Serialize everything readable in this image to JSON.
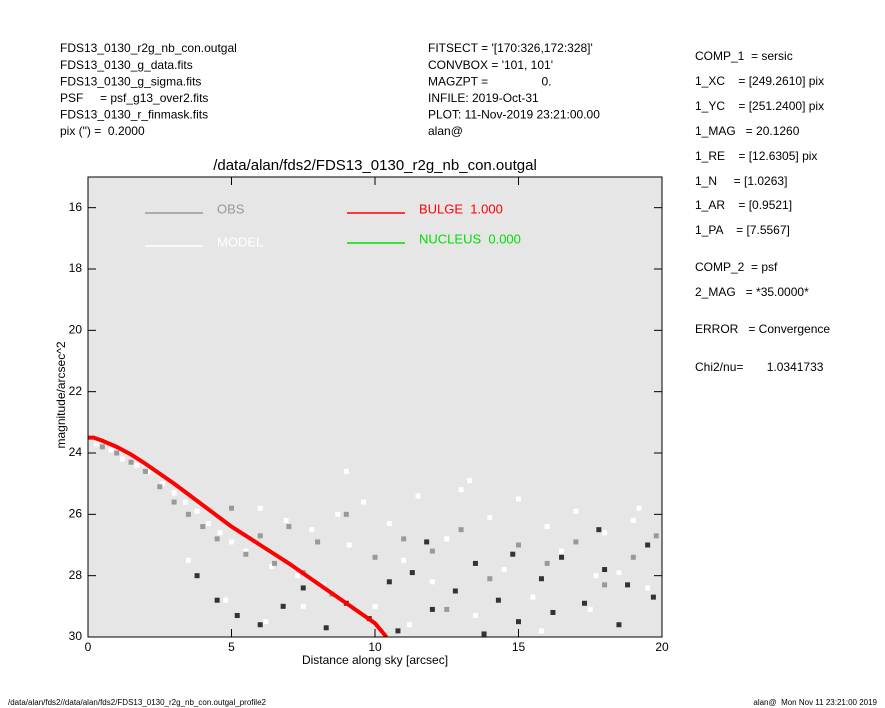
{
  "header": {
    "left": [
      "FDS13_0130_r2g_nb_con.outgal",
      "FDS13_0130_g_data.fits",
      "FDS13_0130_g_sigma.fits",
      "PSF     = psf_g13_over2.fits",
      "FDS13_0130_r_finmask.fits",
      "pix (\") =  0.2000"
    ],
    "middle": [
      "FITSECT = '[170:326,172:328]'",
      "CONVBOX = '101, 101'",
      "MAGZPT =                0.",
      "INFILE: 2019-Oct-31",
      "PLOT: 11-Nov-2019 23:21:00.00",
      "alan@"
    ],
    "right": [
      "COMP_1  = sersic",
      "1_XC    = [249.2610] pix",
      "1_YC    = [251.2400] pix",
      "1_MAG   = 20.1260",
      "1_RE    = [12.6305] pix",
      "1_N     = [1.0263]",
      "1_AR    = [0.9521]",
      "1_PA    = [7.5567]",
      "COMP_2  = psf",
      "2_MAG   = *35.0000*",
      "ERROR   = Convergence",
      "Chi2/nu=       1.0341733"
    ]
  },
  "footer": {
    "left": "/data/alan/fds2//data/alan/fds2/FDS13_0130_r2g_nb_con.outgal_profile2",
    "right": "alan@  Mon Nov 11 23:21:00 2019"
  },
  "chart_data": {
    "type": "scatter",
    "title": "/data/alan/fds2/FDS13_0130_r2g_nb_con.outgal",
    "x_label": "Distance along sky [arcsec]",
    "y_label": "magnitude/arcsec^2",
    "xlim": [
      0,
      20
    ],
    "ylim": [
      15,
      30
    ],
    "y_inverted": true,
    "xticks": [
      0,
      5,
      10,
      15,
      20
    ],
    "yticks": [
      16,
      18,
      20,
      22,
      24,
      26,
      28,
      30
    ],
    "series": [
      {
        "name": "MODEL",
        "color": "#ffffff",
        "mode": "points",
        "x": [
          0.3,
          0.8,
          1.2,
          1.7,
          2.1,
          2.6,
          3.0,
          3.4,
          3.8,
          4.2,
          4.6,
          5.0,
          5.5,
          6.0,
          6.4,
          6.9,
          7.3,
          7.8,
          8.2,
          8.7,
          9.1,
          9.6,
          10.0,
          10.5,
          11.0,
          11.5,
          12.0,
          12.5,
          13.0,
          13.5,
          14.0,
          14.5,
          15.0,
          15.5,
          16.0,
          16.5,
          17.0,
          17.5,
          18.0,
          18.5,
          19.0,
          19.5,
          3.5,
          4.8,
          6.2,
          7.5,
          9.0,
          11.2,
          13.3,
          15.8,
          17.7,
          19.2
        ],
        "values": [
          23.7,
          23.9,
          24.2,
          24.4,
          24.6,
          25.0,
          25.3,
          25.6,
          25.9,
          26.3,
          26.6,
          26.9,
          27.2,
          25.8,
          27.7,
          26.2,
          28.0,
          26.5,
          28.3,
          26.0,
          27.0,
          25.6,
          29.0,
          26.3,
          27.5,
          25.4,
          28.2,
          26.8,
          25.2,
          29.3,
          26.1,
          27.8,
          25.5,
          28.7,
          26.4,
          27.2,
          25.9,
          29.1,
          26.6,
          27.9,
          26.2,
          28.4,
          27.5,
          28.8,
          29.5,
          29.0,
          24.6,
          29.6,
          24.9,
          29.8,
          28.0,
          25.8
        ]
      },
      {
        "name": "OBS",
        "color": "#999999",
        "mode": "points",
        "x": [
          0.5,
          1.0,
          1.5,
          2.0,
          2.5,
          3.0,
          3.5,
          4.0,
          4.5,
          5.0,
          5.5,
          6.0,
          6.5,
          7.0,
          7.5,
          8.0,
          9.0,
          10.0,
          11.0,
          12.0,
          13.0,
          14.0,
          15.0,
          16.0,
          17.0,
          18.0,
          19.0,
          19.8,
          8.5,
          12.5
        ],
        "values": [
          23.8,
          24.0,
          24.3,
          24.6,
          25.1,
          25.6,
          26.0,
          26.4,
          26.8,
          25.8,
          27.3,
          26.7,
          27.6,
          26.4,
          27.9,
          26.9,
          26.0,
          27.4,
          26.8,
          27.2,
          26.5,
          28.1,
          27.0,
          27.6,
          26.9,
          28.3,
          27.4,
          26.7,
          28.6,
          29.1
        ]
      },
      {
        "color": "#333333",
        "mode": "points",
        "x": [
          3.8,
          4.5,
          5.2,
          6.0,
          6.8,
          7.5,
          8.3,
          9.0,
          9.8,
          10.5,
          11.3,
          12.0,
          12.8,
          13.5,
          14.3,
          15.0,
          15.8,
          16.5,
          17.3,
          18.0,
          18.8,
          19.5,
          10.8,
          13.8,
          16.2,
          18.5,
          11.8,
          14.8,
          17.8,
          19.7
        ],
        "values": [
          28.0,
          28.8,
          29.3,
          29.6,
          29.0,
          28.4,
          29.7,
          28.9,
          29.4,
          28.2,
          27.9,
          29.1,
          28.5,
          27.6,
          28.8,
          29.5,
          28.1,
          27.4,
          28.9,
          27.8,
          28.3,
          27.0,
          29.8,
          29.9,
          29.2,
          29.6,
          26.9,
          27.3,
          26.5,
          28.7
        ]
      },
      {
        "name": "BULGE  1.000",
        "color": "#ff0000",
        "mode": "line",
        "x": [
          0,
          0.2,
          0.5,
          1,
          1.5,
          2,
          3,
          4,
          5,
          6,
          7,
          8,
          9,
          10,
          10.4
        ],
        "values": [
          23.5,
          23.5,
          23.6,
          23.8,
          24.05,
          24.35,
          25.0,
          25.7,
          26.4,
          27.0,
          27.6,
          28.25,
          28.9,
          29.55,
          30.0
        ]
      },
      {
        "name": "NUCLEUS  0.000",
        "color": "#00dd00",
        "mode": "line",
        "x": [],
        "values": []
      }
    ]
  }
}
